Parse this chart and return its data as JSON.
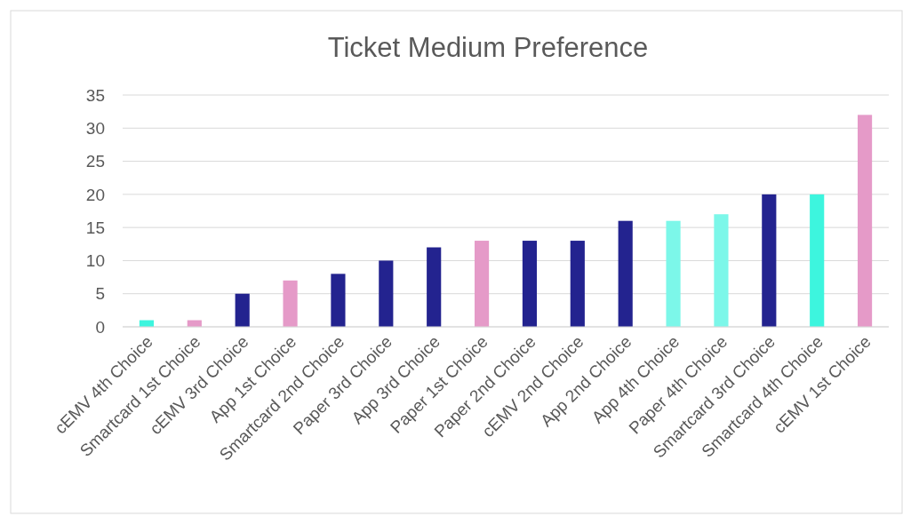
{
  "chart_data": {
    "type": "bar",
    "title": "Ticket Medium Preference",
    "categories": [
      "cEMV 4th Choice",
      "Smartcard 1st Choice",
      "cEMV 3rd Choice",
      "App 1st Choice",
      "Smartcard 2nd Choice",
      "Paper 3rd Choice",
      "App 3rd Choice",
      "Paper 1st Choice",
      "Paper 2nd Choice",
      "cEMV 2nd Choice",
      "App 2nd Choice",
      "App 4th Choice",
      "Paper 4th Choice",
      "Smartcard 3rd Choice",
      "Smartcard 4th Choice",
      "cEMV 1st Choice"
    ],
    "values": [
      1,
      1,
      5,
      7,
      8,
      10,
      12,
      13,
      13,
      13,
      16,
      16,
      17,
      20,
      20,
      32
    ],
    "colors": [
      "#3df5de",
      "#e59ac8",
      "#23238f",
      "#e59ac8",
      "#23238f",
      "#23238f",
      "#23238f",
      "#e59ac8",
      "#23238f",
      "#23238f",
      "#23238f",
      "#7cf7e9",
      "#7cf7e9",
      "#23238f",
      "#3df5de",
      "#e59ac8"
    ],
    "ylim": [
      0,
      35
    ],
    "yticks": [
      0,
      5,
      10,
      15,
      20,
      25,
      30,
      35
    ],
    "grid": "y"
  }
}
